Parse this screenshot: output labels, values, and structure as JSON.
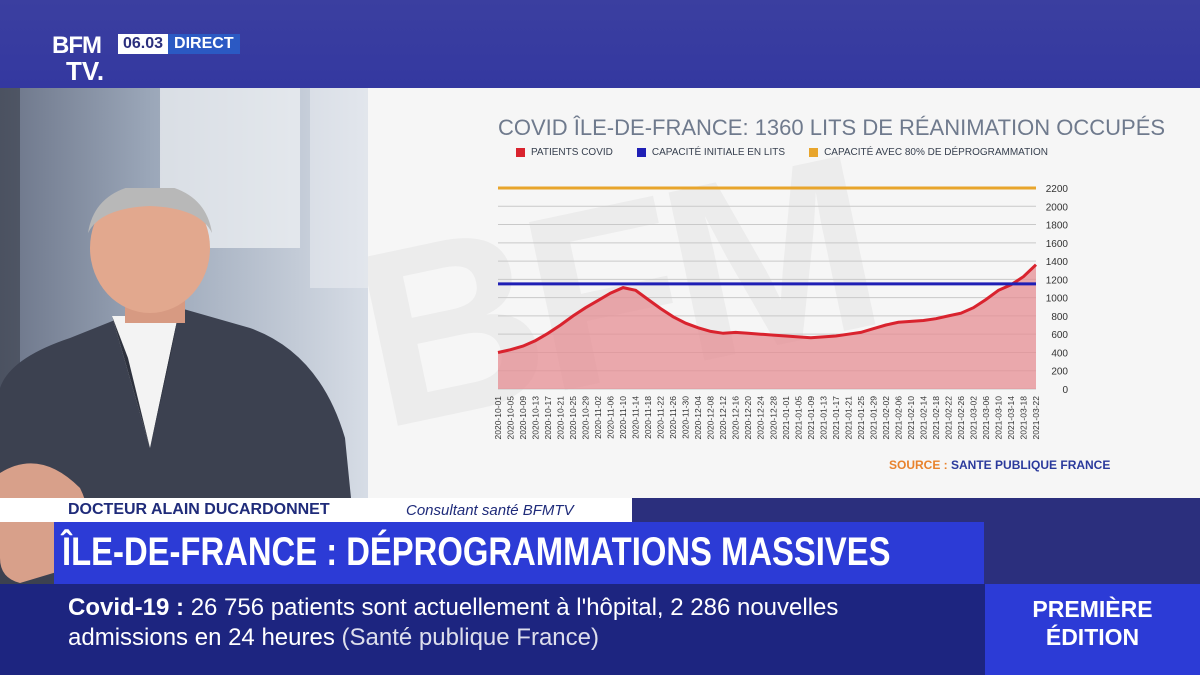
{
  "header": {
    "logo_line1": "BFM",
    "logo_line2": "TV.",
    "time": "06.03",
    "live_label": "DIRECT"
  },
  "chart_data": {
    "type": "line",
    "title": "COVID ÎLE-DE-FRANCE: 1360 LITS DE RÉANIMATION OCCUPÉS",
    "series": [
      {
        "name": "PATIENTS COVID",
        "color": "#d9232e"
      },
      {
        "name": "CAPACITÉ INITIALE EN LITS",
        "color": "#1f1fb5",
        "value": 1150
      },
      {
        "name": "CAPACITÉ AVEC 80% DE DÉPROGRAMMATION",
        "color": "#e8a52c",
        "value": 2200
      }
    ],
    "patients_points": [
      [
        "2020-10-01",
        400
      ],
      [
        "2020-10-05",
        430
      ],
      [
        "2020-10-09",
        470
      ],
      [
        "2020-10-13",
        530
      ],
      [
        "2020-10-17",
        610
      ],
      [
        "2020-10-21",
        700
      ],
      [
        "2020-10-25",
        800
      ],
      [
        "2020-10-29",
        890
      ],
      [
        "2020-11-02",
        970
      ],
      [
        "2020-11-06",
        1050
      ],
      [
        "2020-11-10",
        1110
      ],
      [
        "2020-11-14",
        1080
      ],
      [
        "2020-11-18",
        980
      ],
      [
        "2020-11-22",
        880
      ],
      [
        "2020-11-26",
        790
      ],
      [
        "2020-11-30",
        720
      ],
      [
        "2020-12-04",
        670
      ],
      [
        "2020-12-08",
        630
      ],
      [
        "2020-12-12",
        610
      ],
      [
        "2020-12-16",
        620
      ],
      [
        "2020-12-20",
        610
      ],
      [
        "2020-12-24",
        600
      ],
      [
        "2020-12-28",
        590
      ],
      [
        "2021-01-01",
        580
      ],
      [
        "2021-01-05",
        570
      ],
      [
        "2021-01-09",
        560
      ],
      [
        "2021-01-13",
        570
      ],
      [
        "2021-01-17",
        580
      ],
      [
        "2021-01-21",
        600
      ],
      [
        "2021-01-25",
        620
      ],
      [
        "2021-01-29",
        660
      ],
      [
        "2021-02-02",
        700
      ],
      [
        "2021-02-06",
        730
      ],
      [
        "2021-02-10",
        740
      ],
      [
        "2021-02-14",
        750
      ],
      [
        "2021-02-18",
        770
      ],
      [
        "2021-02-22",
        800
      ],
      [
        "2021-02-26",
        830
      ],
      [
        "2021-03-02",
        890
      ],
      [
        "2021-03-06",
        980
      ],
      [
        "2021-03-10",
        1080
      ],
      [
        "2021-03-14",
        1140
      ],
      [
        "2021-03-18",
        1230
      ],
      [
        "2021-03-22",
        1360
      ]
    ],
    "x_ticks": [
      "2020-10-01",
      "2020-10-05",
      "2020-10-09",
      "2020-10-13",
      "2020-10-17",
      "2020-10-21",
      "2020-10-25",
      "2020-10-29",
      "2020-11-02",
      "2020-11-06",
      "2020-11-10",
      "2020-11-14",
      "2020-11-18",
      "2020-11-22",
      "2020-11-26",
      "2020-11-30",
      "2020-12-04",
      "2020-12-08",
      "2020-12-12",
      "2020-12-16",
      "2020-12-20",
      "2020-12-24",
      "2020-12-28",
      "2021-01-01",
      "2021-01-05",
      "2021-01-09",
      "2021-01-13",
      "2021-01-17",
      "2021-01-21",
      "2021-01-25",
      "2021-01-29",
      "2021-02-02",
      "2021-02-06",
      "2021-02-10",
      "2021-02-14",
      "2021-02-18",
      "2021-02-22",
      "2021-02-26",
      "2021-03-02",
      "2021-03-06",
      "2021-03-10",
      "2021-03-14",
      "2021-03-18",
      "2021-03-22"
    ],
    "y_ticks": [
      0,
      200,
      400,
      600,
      800,
      1000,
      1200,
      1400,
      1600,
      1800,
      2000,
      2200
    ],
    "ylim": [
      0,
      2200
    ],
    "grid": true,
    "legend_position": "top"
  },
  "source": {
    "label": "SOURCE :",
    "value": "SANTE PUBLIQUE FRANCE"
  },
  "lower_third": {
    "name": "DOCTEUR ALAIN DUCARDONNET",
    "role": "Consultant santé BFMTV",
    "headline": "ÎLE-DE-FRANCE : DÉPROGRAMMATIONS MASSIVES"
  },
  "ticker": {
    "topic": "Covid-19",
    "colon": " : ",
    "text1": "26 756 patients sont actuellement à l'hôpital, 2 286 nouvelles",
    "text2": "admissions en 24 heures",
    "source": "(Santé publique France)"
  },
  "edition": {
    "line1": "PREMIÈRE",
    "line2": "ÉDITION"
  },
  "colors": {
    "brand_blue": "#2c3bd6",
    "dark_blue": "#1d2580",
    "accent_orange": "#e8822c"
  }
}
